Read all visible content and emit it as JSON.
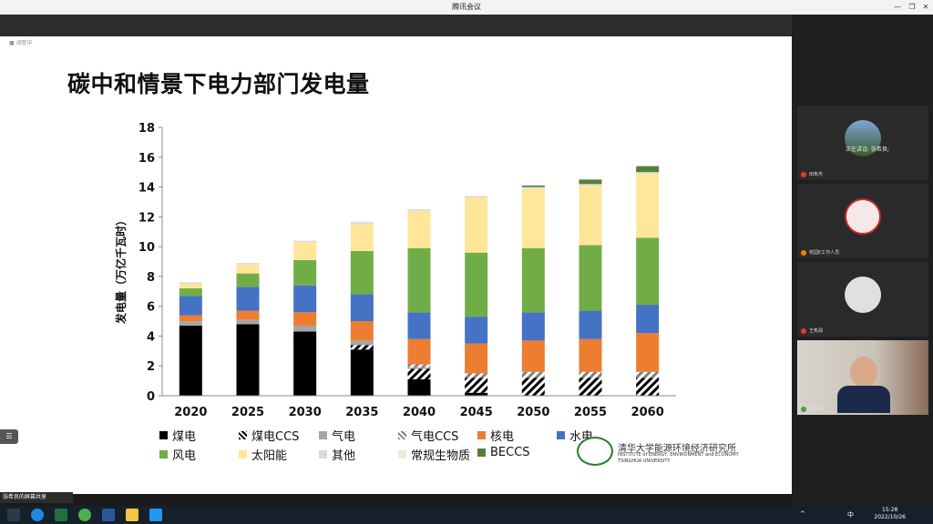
{
  "window": {
    "title": "腾讯会议"
  },
  "slide": {
    "topleft_label": "■ 调整中",
    "title": "碳中和情景下电力部门发电量"
  },
  "chart_data": {
    "type": "bar",
    "stacked": true,
    "title": "碳中和情景下电力部门发电量",
    "ylabel": "发电量（万亿千瓦时）",
    "xlabel": "",
    "ylim": [
      0,
      18
    ],
    "yticks": [
      "0",
      "2",
      "4",
      "6",
      "8",
      "10",
      "12",
      "14",
      "16",
      "18"
    ],
    "categories": [
      "2020",
      "2025",
      "2030",
      "2035",
      "2040",
      "2045",
      "2050",
      "2055",
      "2060"
    ],
    "series": [
      {
        "name": "煤电",
        "color": "#000000",
        "pattern": "solid",
        "values": [
          4.7,
          4.8,
          4.3,
          3.1,
          1.1,
          0.2,
          0.0,
          0.0,
          0.0
        ]
      },
      {
        "name": "煤电CCS",
        "color": "#000000",
        "pattern": "hatch",
        "values": [
          0.0,
          0.0,
          0.0,
          0.3,
          0.7,
          1.0,
          1.2,
          1.2,
          1.2
        ]
      },
      {
        "name": "气电",
        "color": "#a6a6a6",
        "pattern": "solid",
        "values": [
          0.3,
          0.3,
          0.4,
          0.3,
          0.1,
          0.0,
          0.0,
          0.0,
          0.0
        ]
      },
      {
        "name": "气电CCS",
        "color": "#7f7f7f",
        "pattern": "hatch",
        "values": [
          0.0,
          0.0,
          0.0,
          0.0,
          0.2,
          0.3,
          0.4,
          0.4,
          0.4
        ]
      },
      {
        "name": "核电",
        "color": "#ed7d31",
        "pattern": "solid",
        "values": [
          0.4,
          0.6,
          0.9,
          1.3,
          1.7,
          2.0,
          2.1,
          2.2,
          2.6
        ]
      },
      {
        "name": "水电",
        "color": "#4472c4",
        "pattern": "solid",
        "values": [
          1.3,
          1.6,
          1.8,
          1.8,
          1.8,
          1.8,
          1.9,
          1.9,
          1.9
        ]
      },
      {
        "name": "风电",
        "color": "#70ad47",
        "pattern": "solid",
        "values": [
          0.5,
          0.9,
          1.7,
          2.9,
          4.3,
          4.3,
          4.3,
          4.4,
          4.5
        ]
      },
      {
        "name": "太阳能",
        "color": "#ffe699",
        "pattern": "solid",
        "values": [
          0.3,
          0.6,
          1.2,
          1.8,
          2.5,
          3.7,
          4.0,
          4.0,
          4.3
        ]
      },
      {
        "name": "其他",
        "color": "#d9d9d9",
        "pattern": "solid",
        "values": [
          0.1,
          0.1,
          0.1,
          0.1,
          0.1,
          0.1,
          0.1,
          0.1,
          0.1
        ]
      },
      {
        "name": "常规生物质",
        "color": "#e2efda",
        "pattern": "solid",
        "values": [
          0.0,
          0.0,
          0.0,
          0.1,
          0.0,
          0.0,
          0.0,
          0.0,
          0.0
        ]
      },
      {
        "name": "BECCS",
        "color": "#548235",
        "pattern": "solid",
        "values": [
          0.0,
          0.0,
          0.0,
          0.0,
          0.0,
          0.0,
          0.1,
          0.3,
          0.4
        ]
      }
    ]
  },
  "legend": {
    "row1": [
      "煤电",
      "煤电CCS",
      "气电",
      "气电CCS",
      "核电",
      "水电"
    ],
    "row2": [
      "风电",
      "太阳能",
      "其他",
      "常规生物质",
      "BECCS"
    ]
  },
  "institute": {
    "name_cn": "清华大学能源环境经济研究所",
    "name_en1": "INSTITUTE of ENERGY, ENVIRONMENT and ECONOMY",
    "name_en2": "TSINGHUA UNIVERSITY"
  },
  "participants": [
    {
      "name": "田朱杰"
    },
    {
      "name": "校园E工作人员"
    },
    {
      "name": "王隽润"
    },
    {
      "name": "张希良"
    }
  ],
  "speaking_label": "正在讲话: 张希良;",
  "share_label": "张希良的屏幕共享",
  "taskbar": {
    "time": "15:28",
    "date": "2022/10/26",
    "ime": "中"
  }
}
